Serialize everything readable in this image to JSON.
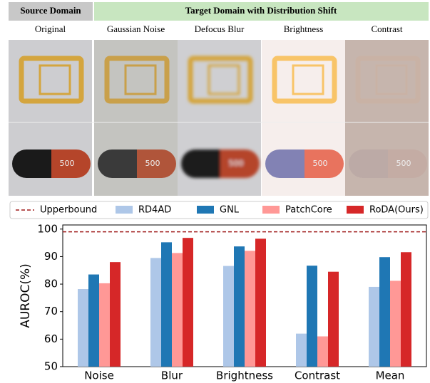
{
  "header": {
    "source": "Source Domain",
    "target": "Target Domain with Distribution Shift"
  },
  "columns": [
    "Original",
    "Gaussian Noise",
    "Defocus Blur",
    "Brightness",
    "Contrast"
  ],
  "image_text": "500",
  "chart_data": {
    "type": "bar",
    "y_label": "AUROC(%)",
    "categories": [
      "Noise",
      "Blur",
      "Brightness",
      "Contrast",
      "Mean"
    ],
    "series": [
      {
        "name": "RD4AD",
        "color": "#aec7e8",
        "values": [
          78.2,
          89.5,
          86.6,
          62.0,
          79.0
        ]
      },
      {
        "name": "GNL",
        "color": "#1f77b4",
        "values": [
          83.5,
          95.2,
          93.7,
          86.7,
          89.8
        ]
      },
      {
        "name": "PatchCore",
        "color": "#ff9896",
        "values": [
          80.3,
          91.3,
          92.1,
          61.0,
          81.2
        ]
      },
      {
        "name": "RoDA(Ours)",
        "color": "#d62728",
        "values": [
          88.0,
          96.8,
          96.5,
          84.5,
          91.6
        ]
      }
    ],
    "reference_line": {
      "name": "Upperbound",
      "value": 99,
      "color": "#a01c1c"
    },
    "ylim": [
      50,
      101.5
    ],
    "yticks": [
      50,
      60,
      70,
      80,
      90,
      100
    ]
  }
}
